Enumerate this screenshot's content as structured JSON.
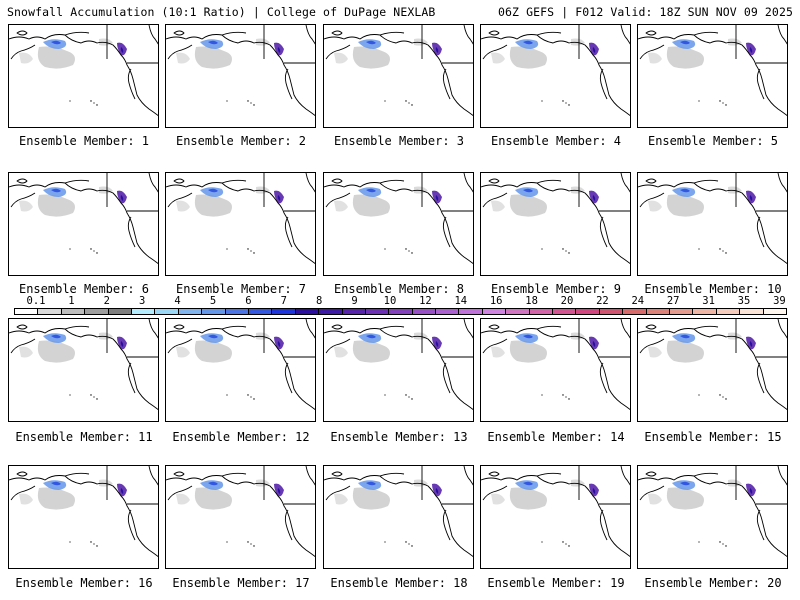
{
  "header": {
    "left_title": "Snowfall Accumulation (10:1 Ratio) | College of DuPage NEXLAB",
    "right_title": "06Z GEFS | F012 Valid: 18Z SUN NOV 09 2025"
  },
  "panels": [
    {
      "caption": "Ensemble Member: 1"
    },
    {
      "caption": "Ensemble Member: 2"
    },
    {
      "caption": "Ensemble Member: 3"
    },
    {
      "caption": "Ensemble Member: 4"
    },
    {
      "caption": "Ensemble Member: 5"
    },
    {
      "caption": "Ensemble Member: 6"
    },
    {
      "caption": "Ensemble Member: 7"
    },
    {
      "caption": "Ensemble Member: 8"
    },
    {
      "caption": "Ensemble Member: 9"
    },
    {
      "caption": "Ensemble Member: 10"
    },
    {
      "caption": "Ensemble Member: 11"
    },
    {
      "caption": "Ensemble Member: 12"
    },
    {
      "caption": "Ensemble Member: 13"
    },
    {
      "caption": "Ensemble Member: 14"
    },
    {
      "caption": "Ensemble Member: 15"
    },
    {
      "caption": "Ensemble Member: 16"
    },
    {
      "caption": "Ensemble Member: 17"
    },
    {
      "caption": "Ensemble Member: 18"
    },
    {
      "caption": "Ensemble Member: 19"
    },
    {
      "caption": "Ensemble Member: 20"
    }
  ],
  "colorbar": {
    "labels": [
      "0.1",
      "1",
      "2",
      "3",
      "4",
      "5",
      "6",
      "7",
      "8",
      "9",
      "10",
      "12",
      "14",
      "16",
      "18",
      "20",
      "22",
      "24",
      "27",
      "31",
      "35",
      "39"
    ],
    "colors": [
      "#ffffff",
      "#d9d9d9",
      "#bdbdbd",
      "#9e9e9e",
      "#7f7f7f",
      "#b3ecff",
      "#9ad6f5",
      "#7fb4ee",
      "#6497ea",
      "#4d74e4",
      "#3357e0",
      "#1d33dc",
      "#2a0f9e",
      "#3d1aa5",
      "#5624ab",
      "#6c30b4",
      "#8340bd",
      "#9750c6",
      "#aa60cf",
      "#bd71d9",
      "#cf84e1",
      "#d074c2",
      "#d263a8",
      "#d25491",
      "#d1467f",
      "#d0546f",
      "#d76a6a",
      "#dd8278",
      "#e59b8e",
      "#eeb5a5",
      "#f5ccbc",
      "#fbe4d6",
      "#fff6ee"
    ]
  }
}
